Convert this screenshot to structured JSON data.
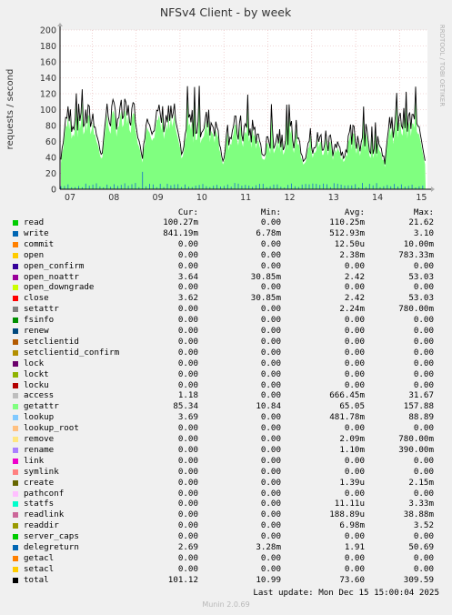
{
  "colors": {
    "background": "#f0f0f0",
    "plot_bg": "#ffffff",
    "grid": "#e6b4b4",
    "axis": "#000000",
    "total_line": "#000000",
    "getattr_fill": "#80ff80",
    "write_fill": "#1e7bc6",
    "access_fill": "#b4b4b4"
  },
  "chart_data": {
    "type": "line",
    "title": "NFSv4 Client - by week",
    "ylabel": "requests / second",
    "watermark": "RRDTOOL / TOBI OETIKER",
    "ylim": [
      0,
      200
    ],
    "y_ticks": [
      0,
      20,
      40,
      60,
      80,
      100,
      120,
      140,
      160,
      180,
      200
    ],
    "x_ticks": [
      "07",
      "08",
      "09",
      "10",
      "11",
      "12",
      "13",
      "14",
      "15"
    ],
    "day_profile": [
      {
        "day": "07",
        "base": 85,
        "peak": 130
      },
      {
        "day": "08",
        "base": 90,
        "peak": 140
      },
      {
        "day": "09",
        "base": 85,
        "peak": 135
      },
      {
        "day": "10",
        "base": 80,
        "peak": 135
      },
      {
        "day": "11",
        "base": 70,
        "peak": 125
      },
      {
        "day": "12",
        "base": 65,
        "peak": 115
      },
      {
        "day": "13",
        "base": 55,
        "peak": 85
      },
      {
        "day": "14",
        "base": 60,
        "peak": 110
      },
      {
        "day": "15",
        "base": 80,
        "peak": 130
      }
    ],
    "night_low": 30
  },
  "legend_header": {
    "cur": "Cur:",
    "min": "Min:",
    "avg": "Avg:",
    "max": "Max:"
  },
  "legend": [
    {
      "name": "read",
      "color": "#00cc00",
      "cur": "100.27m",
      "min": "0.00",
      "avg": "110.25m",
      "max": "21.62"
    },
    {
      "name": "write",
      "color": "#0066b3",
      "cur": "841.19m",
      "min": "6.78m",
      "avg": "512.93m",
      "max": "3.10"
    },
    {
      "name": "commit",
      "color": "#ff8000",
      "cur": "0.00",
      "min": "0.00",
      "avg": "12.50u",
      "max": "10.00m"
    },
    {
      "name": "open",
      "color": "#ffcc00",
      "cur": "0.00",
      "min": "0.00",
      "avg": "2.38m",
      "max": "783.33m"
    },
    {
      "name": "open_confirm",
      "color": "#330099",
      "cur": "0.00",
      "min": "0.00",
      "avg": "0.00",
      "max": "0.00"
    },
    {
      "name": "open_noattr",
      "color": "#990099",
      "cur": "3.64",
      "min": "30.85m",
      "avg": "2.42",
      "max": "53.03"
    },
    {
      "name": "open_downgrade",
      "color": "#ccff00",
      "cur": "0.00",
      "min": "0.00",
      "avg": "0.00",
      "max": "0.00"
    },
    {
      "name": "close",
      "color": "#ff0000",
      "cur": "3.62",
      "min": "30.85m",
      "avg": "2.42",
      "max": "53.03"
    },
    {
      "name": "setattr",
      "color": "#808080",
      "cur": "0.00",
      "min": "0.00",
      "avg": "2.24m",
      "max": "780.00m"
    },
    {
      "name": "fsinfo",
      "color": "#008f00",
      "cur": "0.00",
      "min": "0.00",
      "avg": "0.00",
      "max": "0.00"
    },
    {
      "name": "renew",
      "color": "#00487d",
      "cur": "0.00",
      "min": "0.00",
      "avg": "0.00",
      "max": "0.00"
    },
    {
      "name": "setclientid",
      "color": "#b35a00",
      "cur": "0.00",
      "min": "0.00",
      "avg": "0.00",
      "max": "0.00"
    },
    {
      "name": "setclientid_confirm",
      "color": "#b38f00",
      "cur": "0.00",
      "min": "0.00",
      "avg": "0.00",
      "max": "0.00"
    },
    {
      "name": "lock",
      "color": "#6b006b",
      "cur": "0.00",
      "min": "0.00",
      "avg": "0.00",
      "max": "0.00"
    },
    {
      "name": "lockt",
      "color": "#8fb300",
      "cur": "0.00",
      "min": "0.00",
      "avg": "0.00",
      "max": "0.00"
    },
    {
      "name": "locku",
      "color": "#b30000",
      "cur": "0.00",
      "min": "0.00",
      "avg": "0.00",
      "max": "0.00"
    },
    {
      "name": "access",
      "color": "#bebebe",
      "cur": "1.18",
      "min": "0.00",
      "avg": "666.45m",
      "max": "31.67"
    },
    {
      "name": "getattr",
      "color": "#80ff80",
      "cur": "85.34",
      "min": "10.84",
      "avg": "65.05",
      "max": "157.88"
    },
    {
      "name": "lookup",
      "color": "#80c9ff",
      "cur": "3.69",
      "min": "0.00",
      "avg": "481.78m",
      "max": "88.89"
    },
    {
      "name": "lookup_root",
      "color": "#ffc080",
      "cur": "0.00",
      "min": "0.00",
      "avg": "0.00",
      "max": "0.00"
    },
    {
      "name": "remove",
      "color": "#ffe680",
      "cur": "0.00",
      "min": "0.00",
      "avg": "2.09m",
      "max": "780.00m"
    },
    {
      "name": "rename",
      "color": "#aa80ff",
      "cur": "0.00",
      "min": "0.00",
      "avg": "1.10m",
      "max": "390.00m"
    },
    {
      "name": "link",
      "color": "#ee00cc",
      "cur": "0.00",
      "min": "0.00",
      "avg": "0.00",
      "max": "0.00"
    },
    {
      "name": "symlink",
      "color": "#ff8080",
      "cur": "0.00",
      "min": "0.00",
      "avg": "0.00",
      "max": "0.00"
    },
    {
      "name": "create",
      "color": "#666600",
      "cur": "0.00",
      "min": "0.00",
      "avg": "1.39u",
      "max": "2.15m"
    },
    {
      "name": "pathconf",
      "color": "#ffbfff",
      "cur": "0.00",
      "min": "0.00",
      "avg": "0.00",
      "max": "0.00"
    },
    {
      "name": "statfs",
      "color": "#00ffcc",
      "cur": "0.00",
      "min": "0.00",
      "avg": "11.11u",
      "max": "3.33m"
    },
    {
      "name": "readlink",
      "color": "#cc6699",
      "cur": "0.00",
      "min": "0.00",
      "avg": "188.89u",
      "max": "38.88m"
    },
    {
      "name": "readdir",
      "color": "#999900",
      "cur": "0.00",
      "min": "0.00",
      "avg": "6.98m",
      "max": "3.52"
    },
    {
      "name": "server_caps",
      "color": "#00cc00",
      "cur": "0.00",
      "min": "0.00",
      "avg": "0.00",
      "max": "0.00"
    },
    {
      "name": "delegreturn",
      "color": "#0066b3",
      "cur": "2.69",
      "min": "3.28m",
      "avg": "1.91",
      "max": "50.69"
    },
    {
      "name": "getacl",
      "color": "#ff8000",
      "cur": "0.00",
      "min": "0.00",
      "avg": "0.00",
      "max": "0.00"
    },
    {
      "name": "setacl",
      "color": "#ffcc00",
      "cur": "0.00",
      "min": "0.00",
      "avg": "0.00",
      "max": "0.00"
    },
    {
      "name": "total",
      "color": "#000000",
      "cur": "101.12",
      "min": "10.99",
      "avg": "73.60",
      "max": "309.59"
    }
  ],
  "footer": {
    "last_update": "Last update: Mon Dec 15 15:00:04 2025",
    "munin_version": "Munin 2.0.69"
  }
}
